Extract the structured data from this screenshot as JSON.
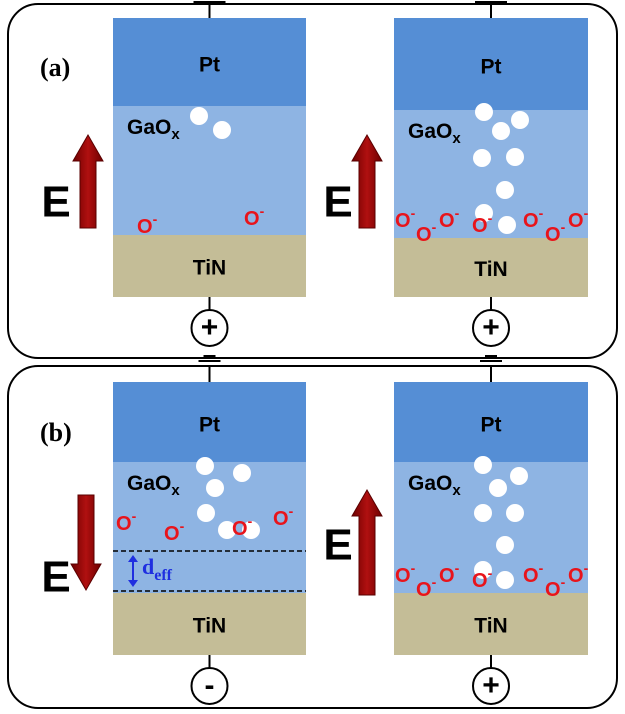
{
  "panels": [
    {
      "label": "(a)",
      "cells": [
        {
          "top_layer": "Pt",
          "oxide": "GaO",
          "oxide_subscript": "x",
          "bottom_layer": "TiN",
          "field_label": "E",
          "terminal": "+",
          "ion": "O",
          "ion_charge": "-"
        },
        {
          "top_layer": "Pt",
          "oxide": "GaO",
          "oxide_subscript": "x",
          "bottom_layer": "TiN",
          "field_label": "E",
          "terminal": "+",
          "ion": "O",
          "ion_charge": "-"
        }
      ]
    },
    {
      "label": "(b)",
      "cells": [
        {
          "top_layer": "Pt",
          "oxide": "GaO",
          "oxide_subscript": "x",
          "bottom_layer": "TiN",
          "field_label": "E",
          "terminal": "-",
          "ion": "O",
          "ion_charge": "-",
          "thickness_label": "d",
          "thickness_subscript": "eff"
        },
        {
          "top_layer": "Pt",
          "oxide": "GaO",
          "oxide_subscript": "x",
          "bottom_layer": "TiN",
          "field_label": "E",
          "terminal": "+",
          "ion": "O",
          "ion_charge": "-"
        }
      ]
    }
  ]
}
